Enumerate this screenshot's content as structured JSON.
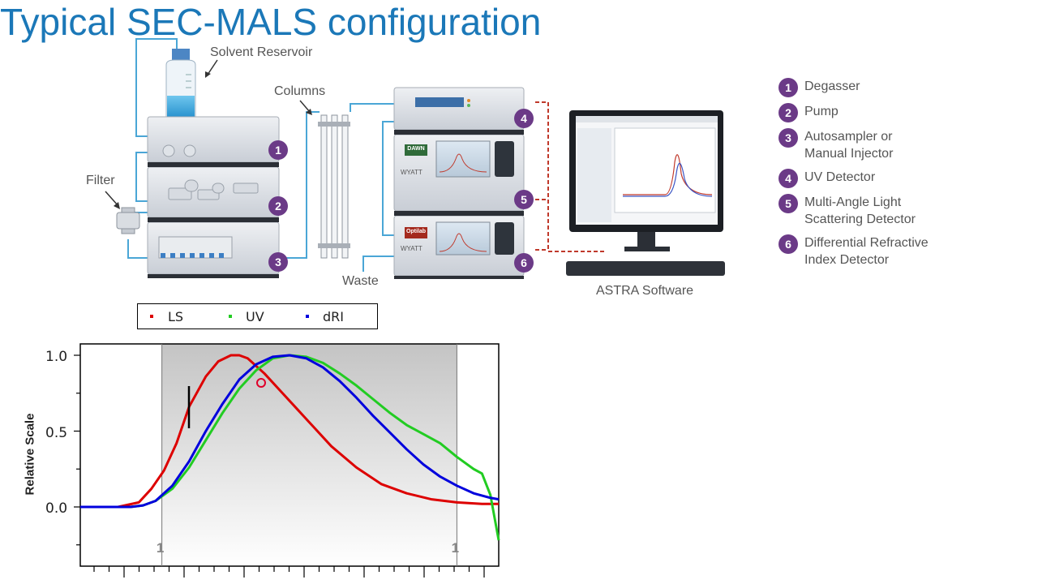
{
  "title": "Typical SEC-MALS configuration",
  "diagram": {
    "labels": {
      "solvent_reservoir": "Solvent Reservoir",
      "columns": "Columns",
      "filter": "Filter",
      "waste": "Waste",
      "software": "ASTRA Software",
      "dawn_badge": "DAWN",
      "optilab_badge": "Optilab",
      "wyatt_brand": "WYATT"
    },
    "callouts": [
      "1",
      "2",
      "3",
      "4",
      "5",
      "6"
    ],
    "legend": [
      {
        "num": "1",
        "text": "Degasser"
      },
      {
        "num": "2",
        "text": "Pump"
      },
      {
        "num": "3",
        "text": "Autosampler or\nManual Injector"
      },
      {
        "num": "4",
        "text": "UV Detector"
      },
      {
        "num": "5",
        "text": "Multi-Angle Light\nScattering Detector"
      },
      {
        "num": "6",
        "text": "Differential Refractive\nIndex Detector"
      }
    ],
    "colors": {
      "callout": "#6b3a87",
      "title": "#1b78b8",
      "signal_line": "#c0392b"
    }
  },
  "chart_data": {
    "type": "line",
    "ylabel": "Relative Scale",
    "yticks": [
      "1.0",
      "0.5",
      "0.0"
    ],
    "ylim": [
      -0.38,
      1.08
    ],
    "xlim": [
      0,
      100
    ],
    "legend": [
      {
        "name": "LS",
        "color": "#dd0000"
      },
      {
        "name": "UV",
        "color": "#22cc22"
      },
      {
        "name": "dRI",
        "color": "#0000dd"
      }
    ],
    "peak_limits": {
      "label": "1",
      "x": [
        19.5,
        90
      ]
    },
    "series": [
      {
        "name": "LS",
        "color": "#dd0000",
        "x": [
          0,
          9,
          14,
          17,
          20,
          23,
          26,
          30,
          33,
          36,
          38,
          40,
          44,
          48,
          52,
          56,
          60,
          66,
          72,
          78,
          84,
          90,
          96,
          100
        ],
        "y": [
          0.0,
          0.0,
          0.03,
          0.12,
          0.24,
          0.42,
          0.66,
          0.86,
          0.96,
          1.0,
          1.0,
          0.98,
          0.88,
          0.76,
          0.64,
          0.52,
          0.4,
          0.26,
          0.15,
          0.09,
          0.05,
          0.03,
          0.02,
          0.02
        ]
      },
      {
        "name": "UV",
        "color": "#22cc22",
        "x": [
          0,
          12,
          15,
          18,
          22,
          26,
          30,
          34,
          38,
          42,
          46,
          50,
          54,
          58,
          62,
          66,
          70,
          74,
          78,
          82,
          86,
          90,
          94,
          96,
          98,
          100
        ],
        "y": [
          0.0,
          0.0,
          0.01,
          0.04,
          0.12,
          0.26,
          0.44,
          0.62,
          0.78,
          0.9,
          0.98,
          1.0,
          0.99,
          0.95,
          0.88,
          0.8,
          0.71,
          0.62,
          0.54,
          0.48,
          0.42,
          0.33,
          0.25,
          0.22,
          0.08,
          -0.22
        ]
      },
      {
        "name": "dRI",
        "color": "#0000dd",
        "x": [
          0,
          12,
          15,
          18,
          22,
          26,
          30,
          34,
          38,
          42,
          46,
          50,
          54,
          58,
          62,
          66,
          70,
          74,
          78,
          82,
          86,
          90,
          94,
          98,
          100
        ],
        "y": [
          0.0,
          0.0,
          0.01,
          0.04,
          0.14,
          0.3,
          0.5,
          0.68,
          0.84,
          0.94,
          0.99,
          1.0,
          0.98,
          0.92,
          0.83,
          0.72,
          0.6,
          0.49,
          0.38,
          0.28,
          0.2,
          0.14,
          0.09,
          0.06,
          0.05
        ]
      }
    ]
  }
}
